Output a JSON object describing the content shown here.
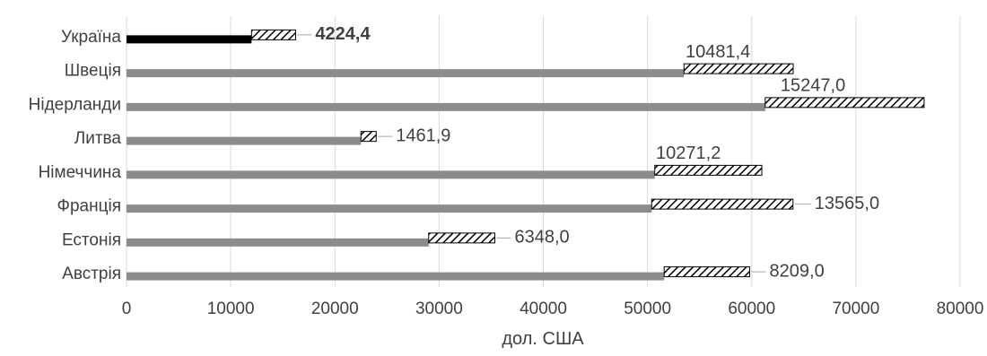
{
  "chart_data": {
    "type": "bar",
    "orientation": "horizontal",
    "stacked": true,
    "categories": [
      "Україна",
      "Швеція",
      "Нідерланди",
      "Литва",
      "Німеччина",
      "Франція",
      "Естонія",
      "Австрія"
    ],
    "series": [
      {
        "values": [
          12000,
          53500,
          61300,
          22500,
          50700,
          50400,
          29000,
          51600
        ],
        "color": "#8c8c8c",
        "highlight": {
          "index": 0,
          "color": "#000000"
        }
      },
      {
        "values": [
          4224.4,
          10481.4,
          15247.0,
          1461.9,
          10271.2,
          13565.0,
          6348.0,
          8209.0
        ],
        "pattern": "diagonal-hatch",
        "data_labels": [
          "4224,4",
          "10481,4",
          "15247,0",
          "1461,9",
          "10271,2",
          "13565,0",
          "6348,0",
          "8209,0"
        ],
        "bold_label_index": 0
      }
    ],
    "xlabel": "дол. США",
    "ylabel": "",
    "xlim": [
      0,
      80000
    ],
    "xticks": [
      0,
      10000,
      20000,
      30000,
      40000,
      50000,
      60000,
      70000,
      80000
    ],
    "xtick_labels": [
      "0",
      "10000",
      "20000",
      "30000",
      "40000",
      "50000",
      "60000",
      "70000",
      "80000"
    ],
    "grid": true
  }
}
